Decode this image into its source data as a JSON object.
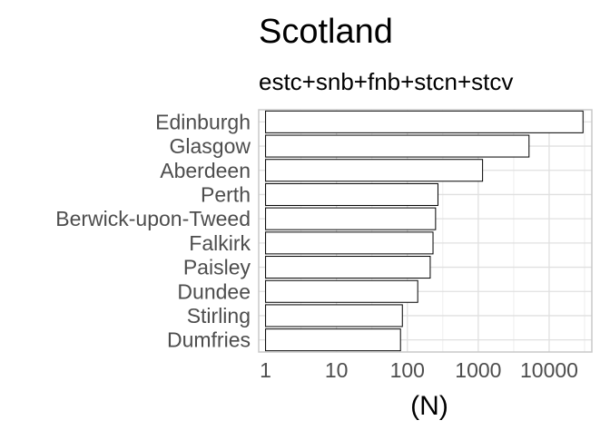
{
  "chart_data": {
    "type": "bar",
    "orientation": "horizontal",
    "title": "Scotland",
    "subtitle": "estc+snb+fnb+stcn+stcv",
    "xlabel": "(N)",
    "ylabel": "",
    "x_scale": "log10",
    "xlim": [
      0.8,
      40000
    ],
    "x_ticks": [
      1,
      10,
      100,
      1000,
      10000
    ],
    "x_tick_labels": [
      "1",
      "10",
      "100",
      "1000",
      "10000"
    ],
    "grid": true,
    "legend": "none",
    "categories": [
      "Edinburgh",
      "Glasgow",
      "Aberdeen",
      "Perth",
      "Berwick-upon-Tweed",
      "Falkirk",
      "Paisley",
      "Dundee",
      "Stirling",
      "Dumfries"
    ],
    "values": [
      30000,
      5200,
      1150,
      270,
      250,
      230,
      210,
      140,
      85,
      80
    ],
    "colors": {
      "bar_fill": "#ffffff",
      "bar_stroke": "#000000",
      "panel_border": "#c8c8c8",
      "grid_major": "#e0e0e0",
      "grid_minor": "#eeeeee",
      "tick_text": "#4d4d4d",
      "title_text": "#000000"
    }
  }
}
